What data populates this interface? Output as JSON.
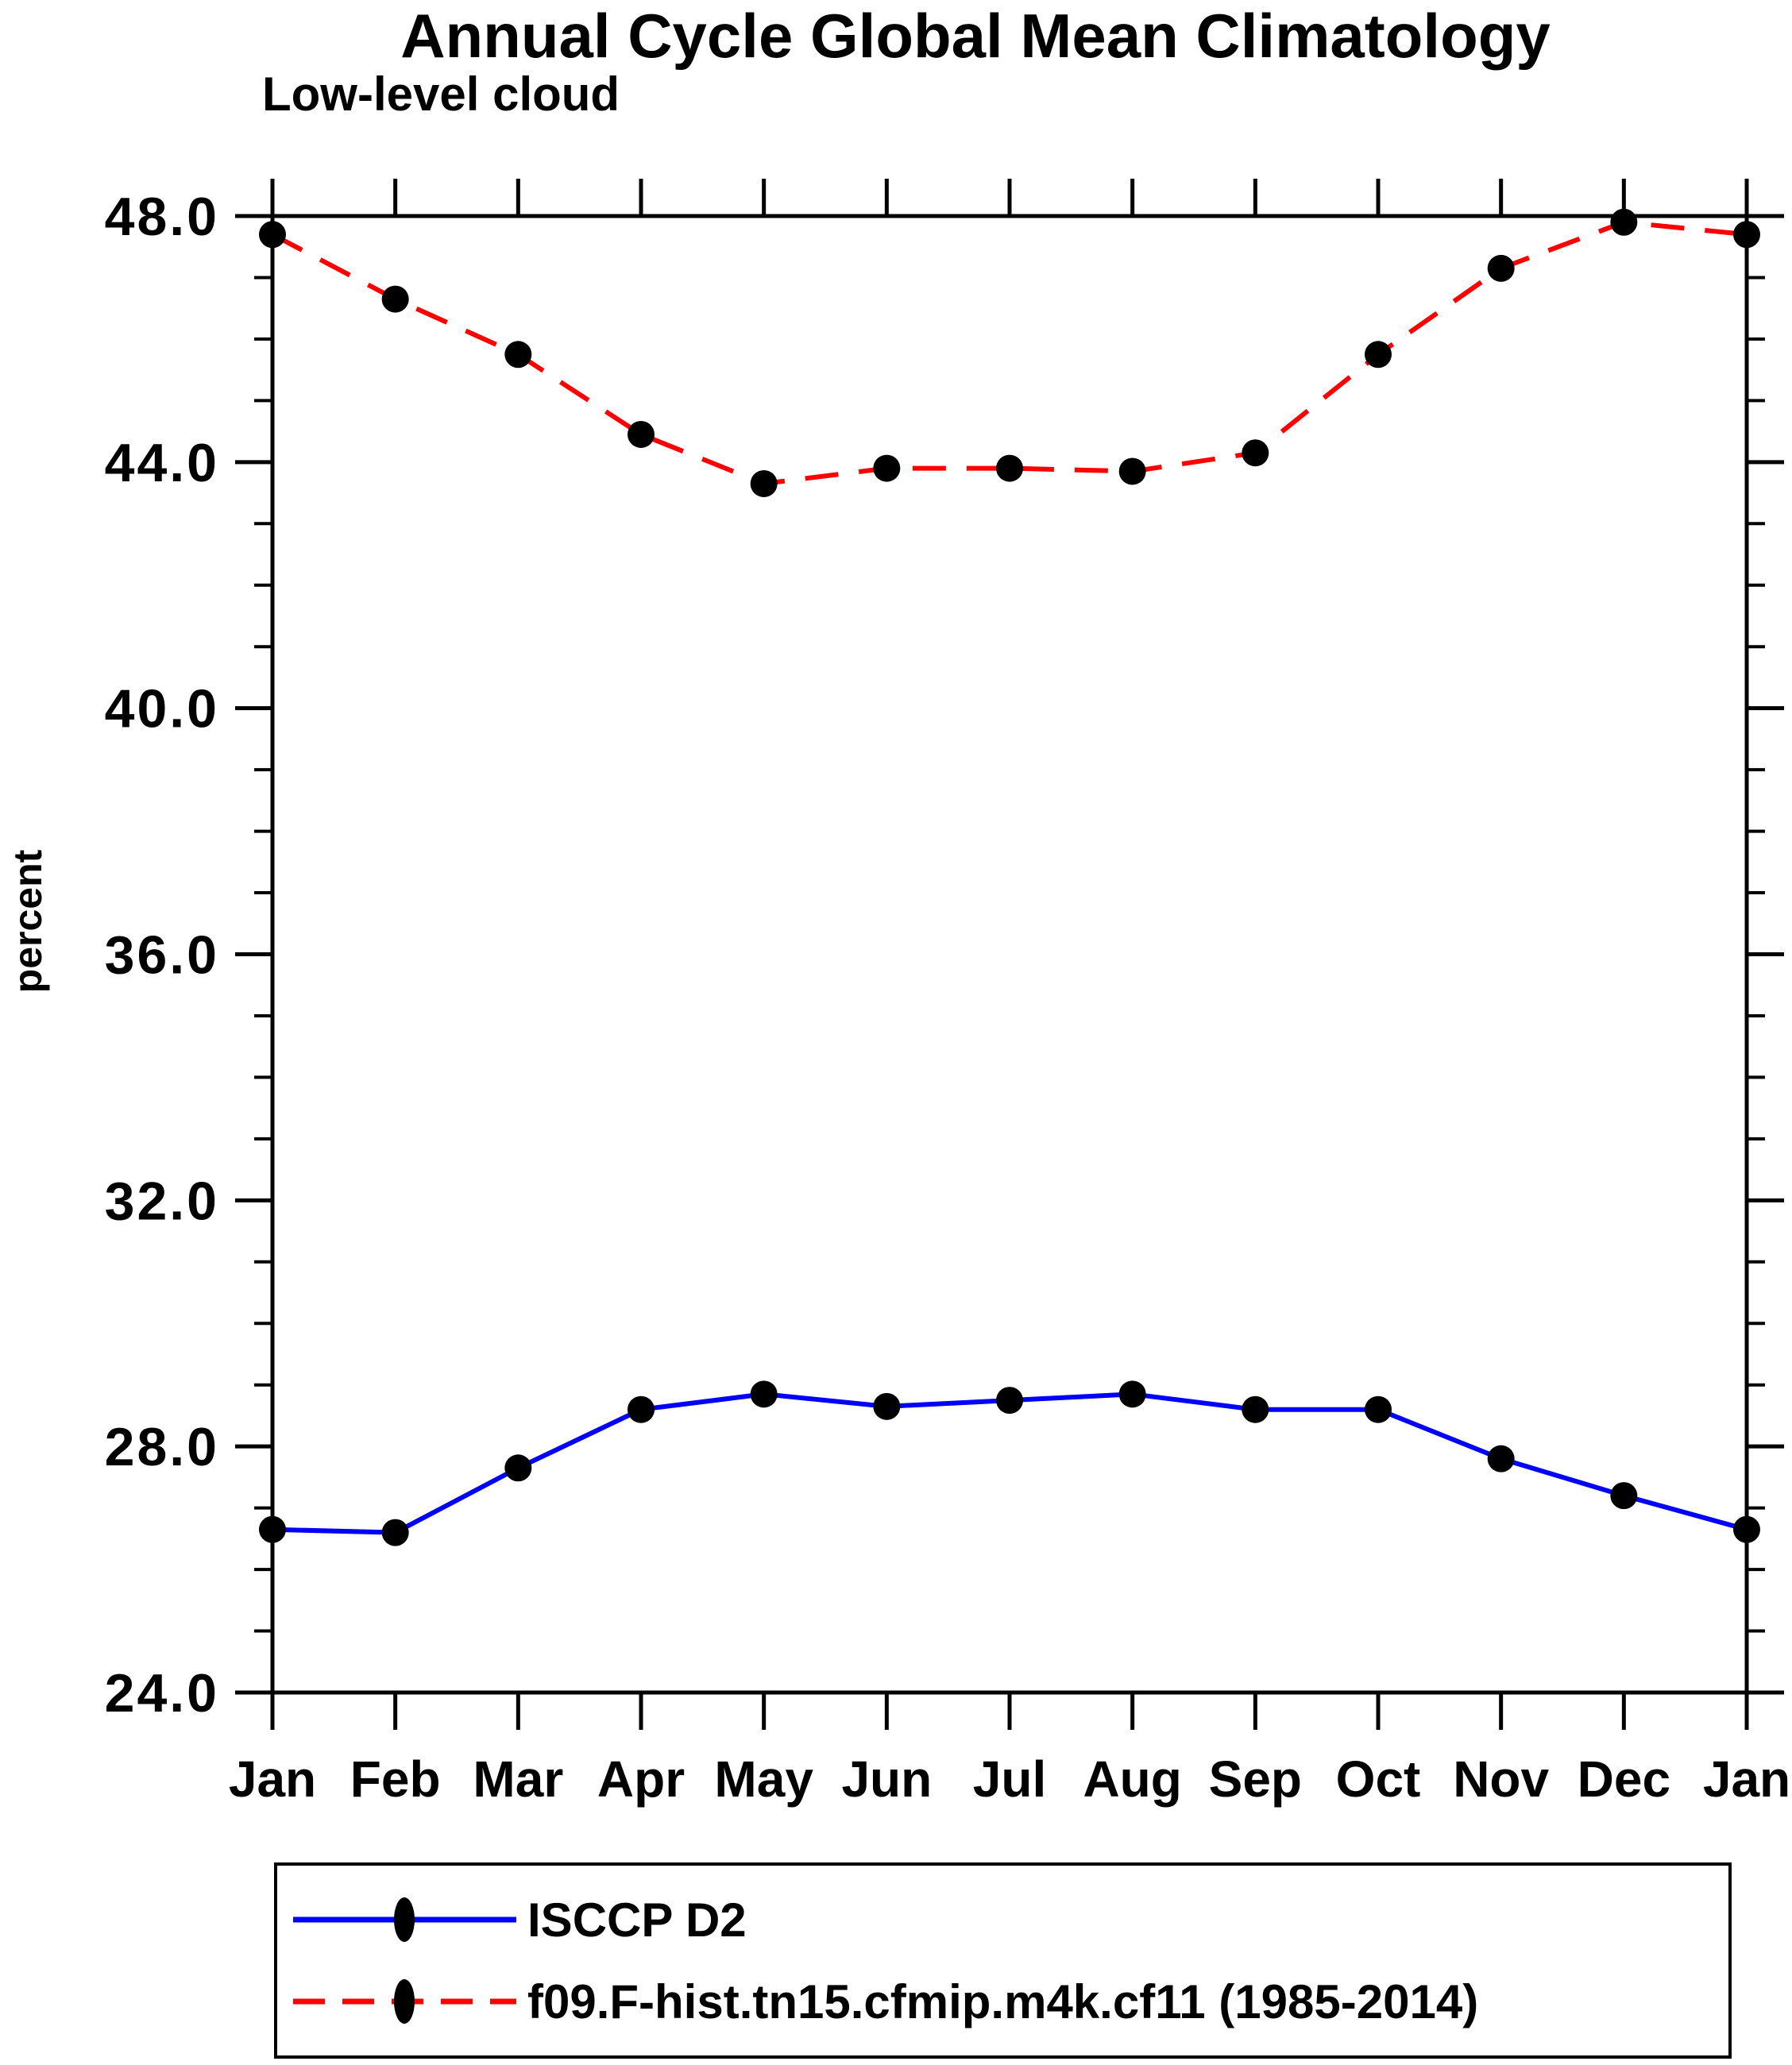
{
  "chart_data": {
    "type": "line",
    "title": "Annual Cycle Global Mean Climatology",
    "subtitle": "Low-level cloud",
    "ylabel": "percent",
    "xlabel": "",
    "x_categories": [
      "Jan",
      "Feb",
      "Mar",
      "Apr",
      "May",
      "Jun",
      "Jul",
      "Aug",
      "Sep",
      "Oct",
      "Nov",
      "Dec",
      "Jan"
    ],
    "ylim": [
      24.0,
      48.0
    ],
    "y_major_ticks": [
      24,
      28,
      32,
      36,
      40,
      44,
      48
    ],
    "y_major_tick_labels": [
      "24.0",
      "28.0",
      "32.0",
      "36.0",
      "40.0",
      "44.0",
      "48.0"
    ],
    "y_minor_step": 1,
    "grid": false,
    "legend_position": "bottom",
    "axis_color": "#000000",
    "marker": "filled-circle",
    "series": [
      {
        "name": "ISCCP D2",
        "color": "#0000ff",
        "line_style": "solid",
        "marker_color": "#000000",
        "values": [
          26.65,
          26.6,
          27.65,
          28.6,
          28.85,
          28.65,
          28.75,
          28.85,
          28.6,
          28.6,
          27.8,
          27.2,
          26.65
        ]
      },
      {
        "name": "f09.F-hist.tn15.cfmip.m4k.cf11 (1985-2014)",
        "color": "#ff0000",
        "line_style": "dashed",
        "marker_color": "#000000",
        "values": [
          47.7,
          46.65,
          45.75,
          44.45,
          43.65,
          43.9,
          43.9,
          43.85,
          44.15,
          45.75,
          47.15,
          47.9,
          47.7
        ]
      }
    ]
  }
}
